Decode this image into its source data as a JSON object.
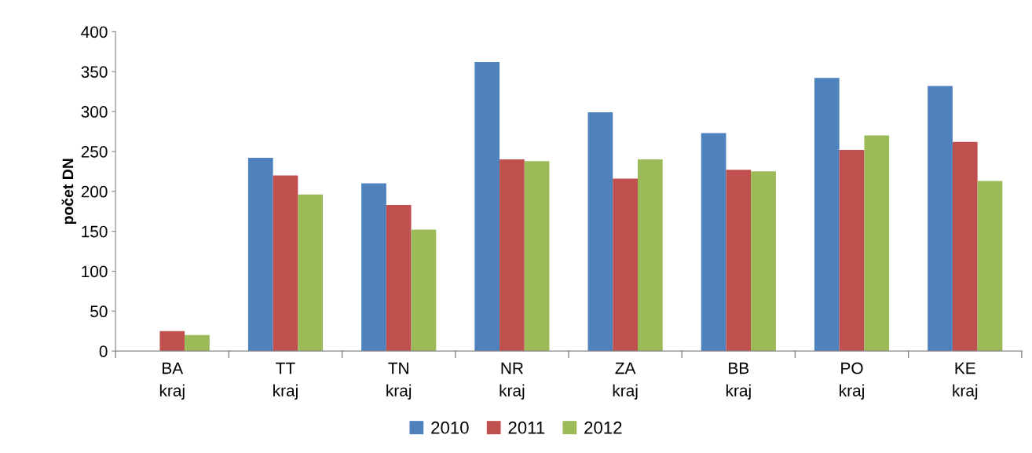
{
  "chart_data": {
    "type": "bar",
    "ylabel": "počet DN",
    "categories": [
      "BA\nkraj",
      "TT\nkraj",
      "TN\nkraj",
      "NR\nkraj",
      "ZA\nkraj",
      "BB\nkraj",
      "PO\nkraj",
      "KE\nkraj"
    ],
    "series": [
      {
        "name": "2010",
        "color": "#4f81bd",
        "values": [
          null,
          242,
          210,
          362,
          299,
          273,
          342,
          332
        ]
      },
      {
        "name": "2011",
        "color": "#c0504d",
        "values": [
          25,
          220,
          183,
          240,
          216,
          227,
          252,
          262
        ]
      },
      {
        "name": "2012",
        "color": "#9bbb59",
        "values": [
          20,
          196,
          152,
          238,
          240,
          225,
          270,
          213
        ]
      }
    ],
    "ylim": [
      0,
      400
    ],
    "yticks": [
      0,
      50,
      100,
      150,
      200,
      250,
      300,
      350,
      400
    ],
    "grid": false,
    "legend": "bottom"
  }
}
